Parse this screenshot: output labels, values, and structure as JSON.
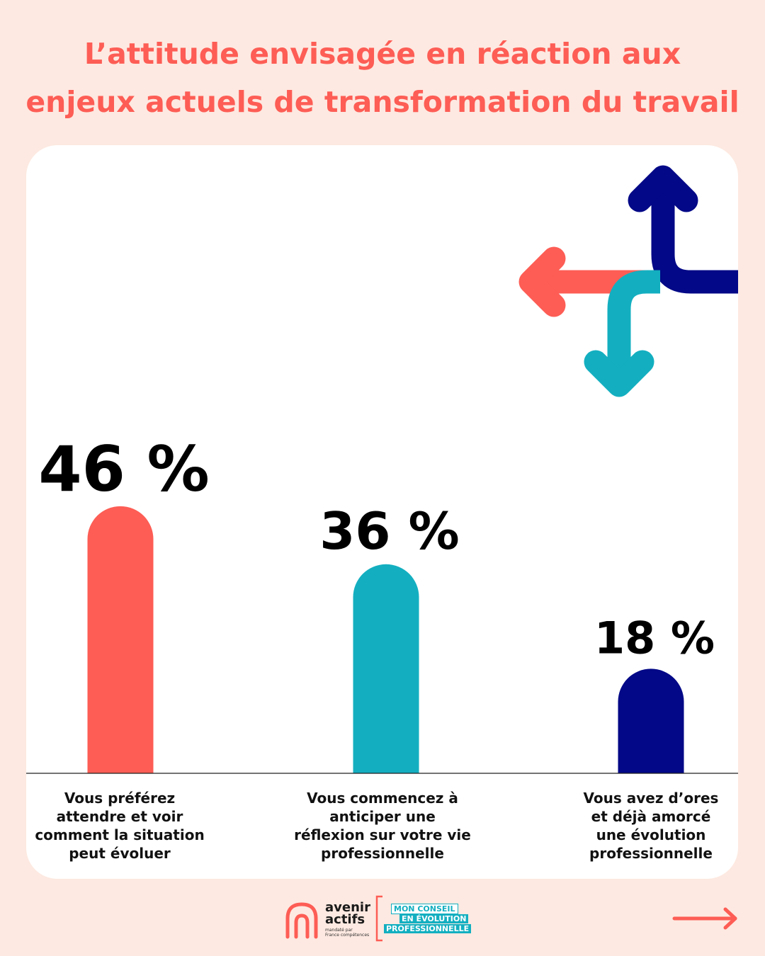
{
  "title": {
    "line1": "L’attitude envisagée en réaction aux",
    "line2": "enjeux actuels de transformation du travail"
  },
  "chart_data": {
    "type": "bar",
    "categories": [
      [
        "Vous préférez",
        "attendre et voir",
        "comment la situation",
        "peut évoluer"
      ],
      [
        "Vous commencez à",
        "anticiper une",
        "réflexion sur votre vie",
        "professionnelle"
      ],
      [
        "Vous avez d’ores",
        "et déjà amorcé",
        "une évolution",
        "professionnelle"
      ]
    ],
    "values": [
      46,
      36,
      18
    ],
    "value_labels": [
      "46 %",
      "36 %",
      "18 %"
    ],
    "unit": "%",
    "ylim": [
      0,
      50
    ],
    "grid": false,
    "colors": [
      "#fd5d55",
      "#13afc0",
      "#020887"
    ]
  },
  "decoration": {
    "icon": "direction-arrows-icon",
    "colors": [
      "#fd5d55",
      "#020887",
      "#13afc0"
    ]
  },
  "footer": {
    "logo": {
      "word1": "avenir",
      "word2": "actifs",
      "small1": "mandaté par",
      "small2": "France compétences",
      "tag1": "MON CONSEIL",
      "tag2": "EN ÉVOLUTION",
      "tag3": "PROFESSIONNELLE"
    },
    "next_icon": "arrow-right-icon",
    "accent": "#fd5d55"
  }
}
